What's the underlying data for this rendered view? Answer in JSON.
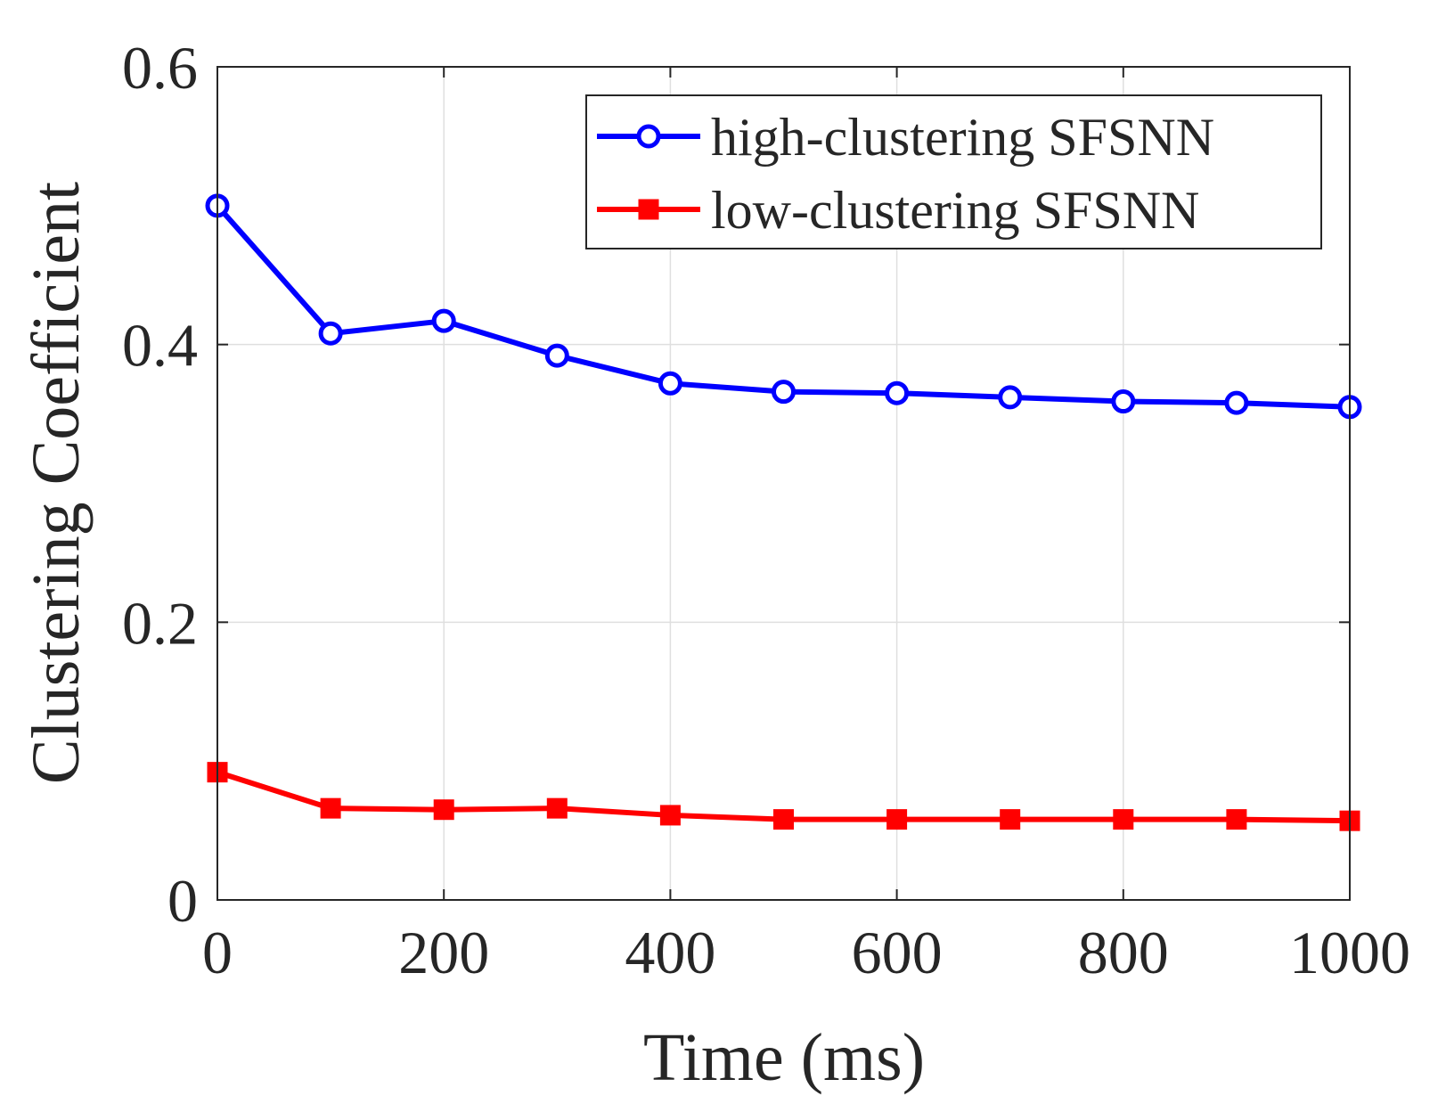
{
  "chart_data": {
    "type": "line",
    "title": "",
    "xlabel": "Time (ms)",
    "ylabel": "Clustering Coefficient",
    "xlim": [
      0,
      1000
    ],
    "ylim": [
      0,
      0.6
    ],
    "x": [
      0,
      100,
      200,
      300,
      400,
      500,
      600,
      700,
      800,
      900,
      1000
    ],
    "xticks": [
      0,
      200,
      400,
      600,
      800,
      1000
    ],
    "xtick_labels": [
      "0",
      "200",
      "400",
      "600",
      "800",
      "1000"
    ],
    "yticks": [
      0,
      0.2,
      0.4,
      0.6
    ],
    "ytick_labels": [
      "0",
      "0.2",
      "0.4",
      "0.6"
    ],
    "grid": true,
    "legend_position": "top-right",
    "series": [
      {
        "name": "high-clustering SFSNN",
        "color": "#0000ff",
        "marker": "circle",
        "values": [
          0.5,
          0.408,
          0.417,
          0.392,
          0.372,
          0.366,
          0.365,
          0.362,
          0.359,
          0.358,
          0.355
        ]
      },
      {
        "name": "low-clustering SFSNN",
        "color": "#ff0000",
        "marker": "square",
        "values": [
          0.092,
          0.066,
          0.065,
          0.066,
          0.061,
          0.058,
          0.058,
          0.058,
          0.058,
          0.058,
          0.057
        ]
      }
    ]
  }
}
